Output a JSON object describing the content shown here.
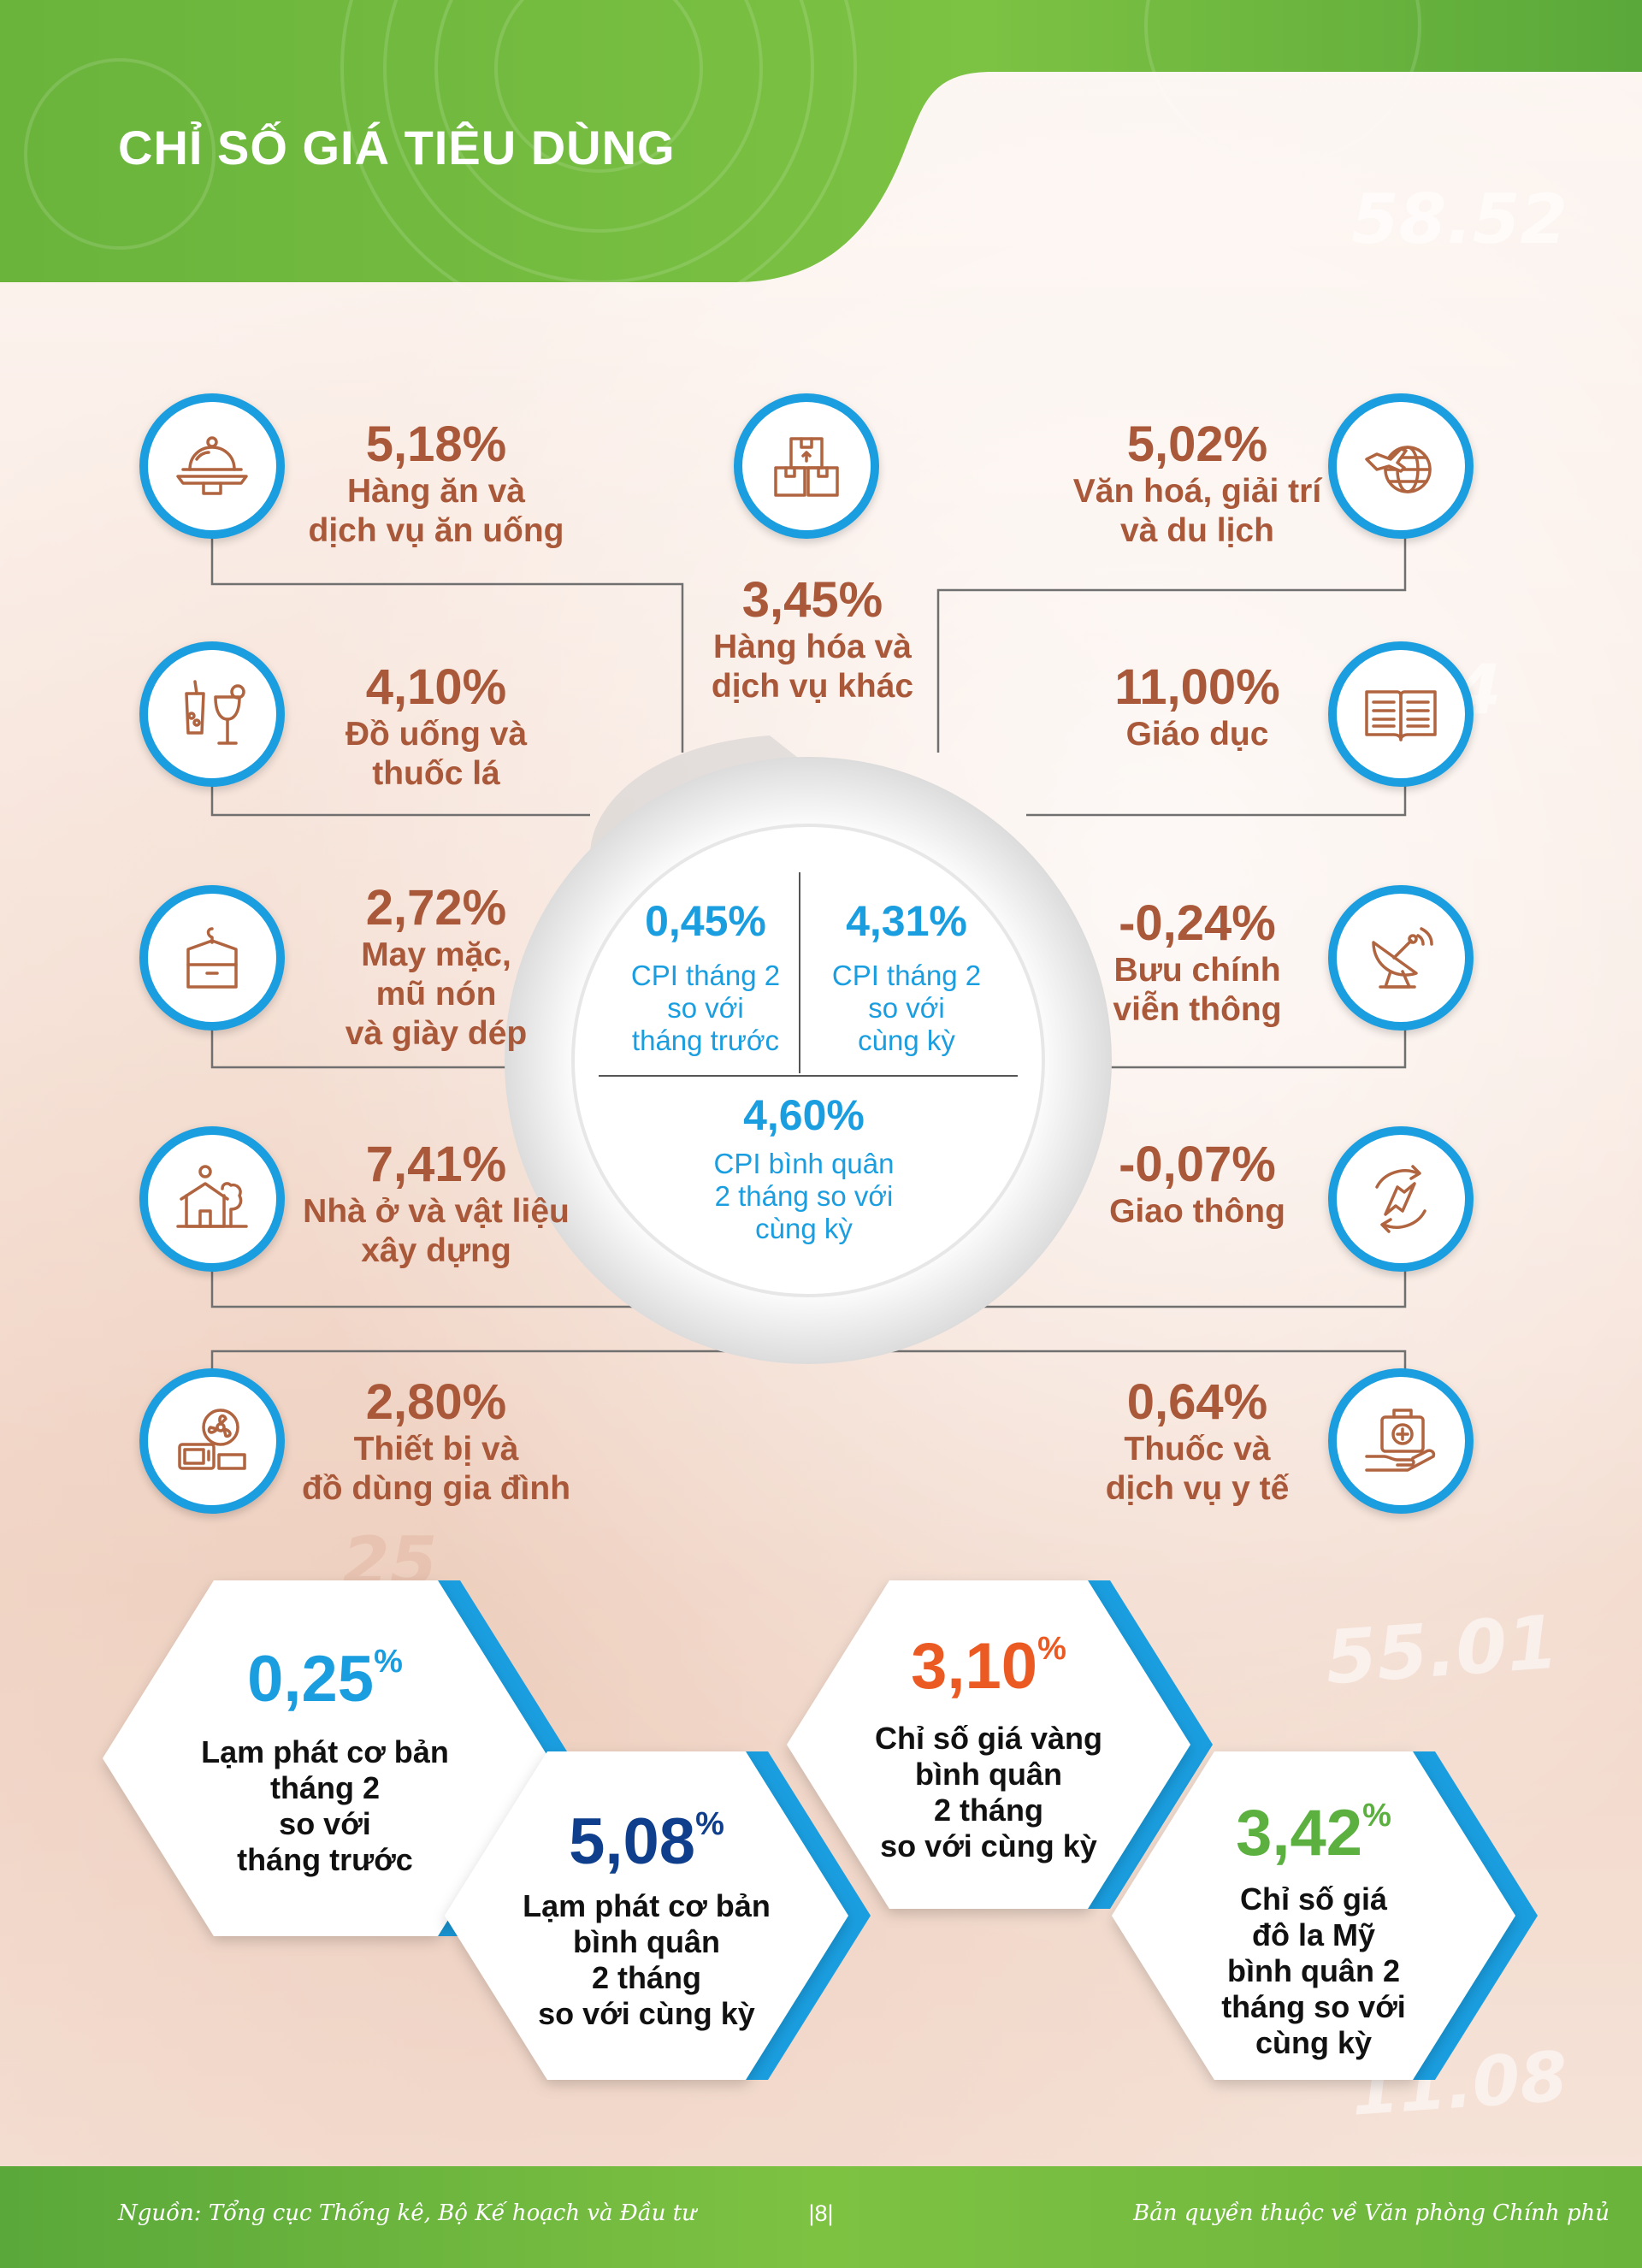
{
  "header": {
    "title": "CHỈ SỐ GIÁ TIÊU DÙNG"
  },
  "colors": {
    "blue": "#1a9ee0",
    "brown": "#a9593a",
    "green": "#6ab43c",
    "navy": "#0f3f8c",
    "orange": "#ec5a24",
    "hex_green": "#5cb040"
  },
  "categories": [
    {
      "id": "food",
      "icon": "food-tray-icon",
      "value": "5,18%",
      "label_lines": [
        "Hàng ăn và",
        "dịch vụ ăn uống"
      ]
    },
    {
      "id": "drinks",
      "icon": "drinks-icon",
      "value": "4,10%",
      "label_lines": [
        "Đồ uống và",
        "thuốc lá"
      ]
    },
    {
      "id": "clothing",
      "icon": "clothing-icon",
      "value": "2,72%",
      "label_lines": [
        "May mặc,",
        "mũ nón",
        "và giày dép"
      ]
    },
    {
      "id": "housing",
      "icon": "house-icon",
      "value": "7,41%",
      "label_lines": [
        "Nhà ở và vật liệu",
        "xây dựng"
      ]
    },
    {
      "id": "appliances",
      "icon": "appliance-icon",
      "value": "2,80%",
      "label_lines": [
        "Thiết bị và",
        "đồ dùng gia đình"
      ]
    },
    {
      "id": "other",
      "icon": "boxes-icon",
      "value": "3,45%",
      "label_lines": [
        "Hàng hóa và",
        "dịch vụ khác"
      ]
    },
    {
      "id": "culture",
      "icon": "plane-globe-icon",
      "value": "5,02%",
      "label_lines": [
        "Văn hoá, giải trí",
        "và du lịch"
      ]
    },
    {
      "id": "education",
      "icon": "book-icon",
      "value": "11,00%",
      "label_lines": [
        "Giáo dục"
      ]
    },
    {
      "id": "telecom",
      "icon": "satellite-dish-icon",
      "value": "-0,24%",
      "label_lines": [
        "Bưu chính",
        "viễn thông"
      ]
    },
    {
      "id": "transport",
      "icon": "transport-arrows-icon",
      "value": "-0,07%",
      "label_lines": [
        "Giao thông"
      ]
    },
    {
      "id": "medical",
      "icon": "medical-kit-icon",
      "value": "0,64%",
      "label_lines": [
        "Thuốc và",
        "dịch vụ y tế"
      ]
    }
  ],
  "center": {
    "mom": {
      "value": "0,45%",
      "label_lines": [
        "CPI tháng 2",
        "so với",
        "tháng trước"
      ]
    },
    "yoy": {
      "value": "4,31%",
      "label_lines": [
        "CPI tháng 2",
        "so với",
        "cùng kỳ"
      ]
    },
    "avg": {
      "value": "4,60%",
      "label_lines": [
        "CPI bình quân",
        "2 tháng so với",
        "cùng kỳ"
      ]
    }
  },
  "hexagons": [
    {
      "id": "core-mom",
      "value": "0,25",
      "unit": "%",
      "color": "#1a9ee0",
      "label_lines": [
        "Lạm phát cơ bản",
        "tháng 2",
        "so với",
        "tháng trước"
      ]
    },
    {
      "id": "core-avg",
      "value": "5,08",
      "unit": "%",
      "color": "#0f3f8c",
      "label_lines": [
        "Lạm phát cơ bản",
        "bình quân",
        "2 tháng",
        "so với cùng kỳ"
      ]
    },
    {
      "id": "gold",
      "value": "3,10",
      "unit": "%",
      "color": "#ec5a24",
      "label_lines": [
        "Chỉ số giá vàng",
        "bình quân",
        "2 tháng",
        "so với cùng kỳ"
      ]
    },
    {
      "id": "usd",
      "value": "3,42",
      "unit": "%",
      "color": "#5cb040",
      "label_lines": [
        "Chỉ số giá",
        "đô la Mỹ",
        "bình quân 2",
        "tháng so với",
        "cùng kỳ"
      ]
    }
  ],
  "background_numbers": [
    "55.01",
    "11.08",
    "25",
    "4",
    "58.52"
  ],
  "footer": {
    "source": "Nguồn: Tổng cục Thống kê, Bộ Kế hoạch và Đầu tư",
    "page": "|8|",
    "copyright": "Bản quyền thuộc về Văn phòng Chính phủ"
  }
}
